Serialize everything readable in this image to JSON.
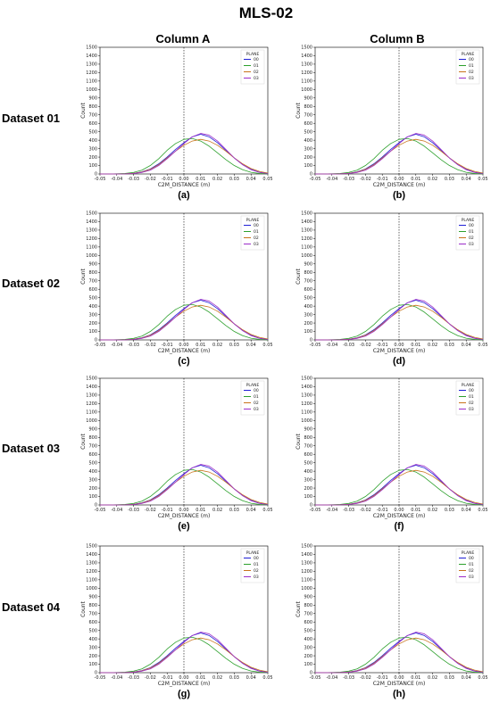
{
  "figure": {
    "title": "MLS-02",
    "columns": [
      "Column A",
      "Column B"
    ],
    "rows": [
      "Dataset 01",
      "Dataset 02",
      "Dataset 03",
      "Dataset 04"
    ]
  },
  "colors": {
    "00": "#1f1fd6",
    "01": "#2ca02c",
    "02": "#c8731a",
    "03": "#9b2cc9"
  },
  "chart_data": {
    "type": "line",
    "panel_count": 8,
    "panel_captions": [
      "(a)",
      "(b)",
      "(c)",
      "(d)",
      "(e)",
      "(f)",
      "(g)",
      "(h)"
    ],
    "xlabel": "C2M_DISTANCE (m)",
    "ylabel": "Count",
    "xlim": [
      -0.05,
      0.05
    ],
    "ylim": [
      0,
      1500
    ],
    "x_ticks": [
      "-0.05",
      "-0.04",
      "-0.03",
      "-0.02",
      "-0.01",
      "0.00",
      "0.01",
      "0.02",
      "0.03",
      "0.04",
      "0.05"
    ],
    "y_ticks": [
      "0",
      "100",
      "200",
      "300",
      "400",
      "500",
      "600",
      "700",
      "800",
      "900",
      "1000",
      "1100",
      "1200",
      "1300",
      "1400",
      "1500"
    ],
    "reference_line_x": 0.0,
    "legend": {
      "title": "PLANE",
      "position": "top-right",
      "entries": [
        "00",
        "01",
        "02",
        "03"
      ]
    },
    "x": [
      -0.05,
      -0.045,
      -0.04,
      -0.035,
      -0.03,
      -0.025,
      -0.02,
      -0.015,
      -0.01,
      -0.005,
      0.0,
      0.005,
      0.01,
      0.015,
      0.02,
      0.025,
      0.03,
      0.035,
      0.04,
      0.045,
      0.05
    ],
    "series": [
      {
        "name": "00",
        "values": [
          0,
          0,
          0,
          2,
          8,
          25,
          60,
          120,
          200,
          290,
          370,
          440,
          470,
          440,
          370,
          280,
          190,
          110,
          55,
          20,
          5
        ]
      },
      {
        "name": "01",
        "values": [
          0,
          0,
          2,
          6,
          18,
          45,
          100,
          180,
          280,
          360,
          410,
          420,
          390,
          330,
          250,
          170,
          100,
          50,
          20,
          6,
          2
        ]
      },
      {
        "name": "02",
        "values": [
          0,
          0,
          0,
          2,
          8,
          22,
          55,
          110,
          190,
          270,
          340,
          390,
          410,
          390,
          340,
          270,
          190,
          120,
          65,
          30,
          10
        ]
      },
      {
        "name": "03",
        "values": [
          0,
          0,
          0,
          1,
          5,
          18,
          45,
          100,
          180,
          270,
          360,
          440,
          480,
          460,
          390,
          290,
          190,
          110,
          50,
          18,
          5
        ]
      }
    ]
  }
}
